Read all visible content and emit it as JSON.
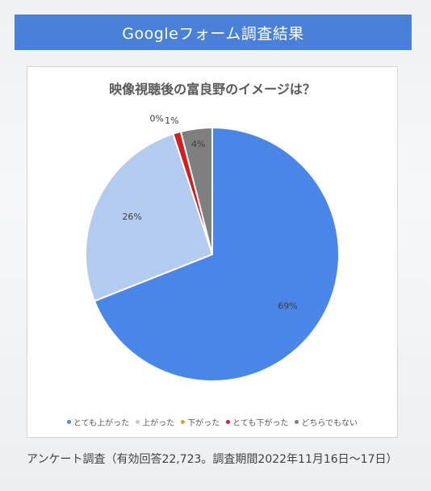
{
  "banner": {
    "title": "Googleフォーム調査結果"
  },
  "chart_data": {
    "type": "pie",
    "title": "映像視聴後の富良野のイメージは？",
    "categories": [
      "とても上がった",
      "上がった",
      "下がった",
      "とても下がった",
      "どちらでもない"
    ],
    "values": [
      69,
      26,
      0,
      1,
      4
    ],
    "labels": [
      "69%",
      "26%",
      "0%",
      "1%",
      "4%"
    ],
    "colors": [
      "#4a86e8",
      "#b4cbf0",
      "#ed9b2f",
      "#d21f1f",
      "#7f7f7f"
    ],
    "legend_position": "bottom"
  },
  "footer": {
    "note": "アンケート調査（有効回答22,723。調査期間2022年11月16日～17日）"
  }
}
